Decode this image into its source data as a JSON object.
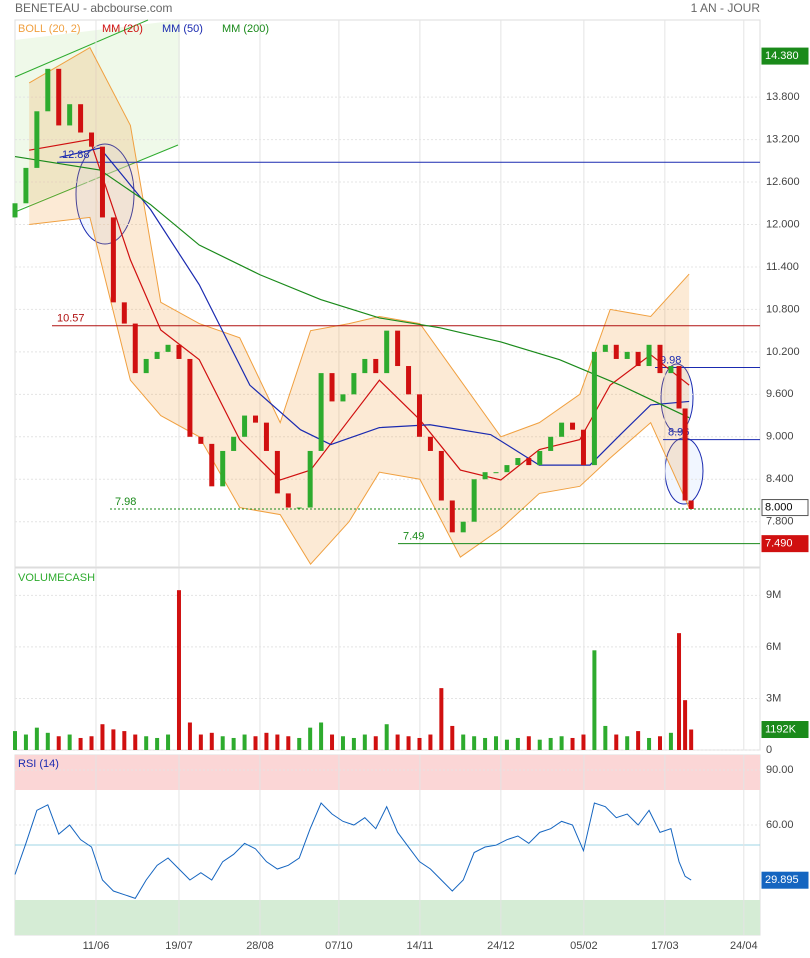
{
  "header": {
    "title": "BENETEAU - abcbourse.com",
    "period": "1 AN - JOUR"
  },
  "chart_data": [
    {
      "type": "candlestick",
      "xlim": [
        0,
        368
      ],
      "xticks": [
        {
          "value": 40,
          "label": "11/06"
        },
        {
          "value": 81,
          "label": "19/07"
        },
        {
          "value": 121,
          "label": "28/08"
        },
        {
          "value": 160,
          "label": "07/10"
        },
        {
          "value": 200,
          "label": "14/11"
        },
        {
          "value": 240,
          "label": "24/12"
        },
        {
          "value": 281,
          "label": "05/02"
        },
        {
          "value": 321,
          "label": "17/03"
        },
        {
          "value": 360,
          "label": "24/04"
        }
      ],
      "ylim": [
        7.16,
        14.89
      ],
      "yticks": [
        {
          "value": 13.8,
          "label": "13.800"
        },
        {
          "value": 13.2,
          "label": "13.200"
        },
        {
          "value": 12.6,
          "label": "12.600"
        },
        {
          "value": 12,
          "label": "12.000"
        },
        {
          "value": 11.4,
          "label": "11.400"
        },
        {
          "value": 10.8,
          "label": "10.800"
        },
        {
          "value": 10.2,
          "label": "10.200"
        },
        {
          "value": 9.6,
          "label": "9.600"
        },
        {
          "value": 9,
          "label": "9.000"
        },
        {
          "value": 8.4,
          "label": "8.400"
        },
        {
          "value": 7.8,
          "label": "7.800"
        }
      ],
      "grid": true,
      "up_color": "#2eab2e",
      "down_color": "#d01010",
      "candles": {
        "x": [
          0,
          5.4,
          10.8,
          16.2,
          21.6,
          27,
          32.4,
          37.8,
          43.2,
          48.6,
          54,
          59.4,
          64.8,
          70.2,
          75.6,
          81,
          86.4,
          91.8,
          97.2,
          102.6,
          108,
          113.4,
          118.8,
          124.2,
          129.6,
          135,
          140.4,
          145.8,
          151.2,
          156.6,
          162,
          167.4,
          172.8,
          178.2,
          183.6,
          189,
          194.4,
          199.8,
          205.2,
          210.6,
          216,
          221.4,
          226.8,
          232.2,
          237.6,
          243,
          248.4,
          253.8,
          259.2,
          264.6,
          270,
          275.4,
          280.8,
          286.2,
          291.6,
          297,
          302.4,
          307.8,
          313.2,
          318.6,
          324,
          328,
          331,
          334
        ],
        "open": [
          12.1,
          12.3,
          12.8,
          13.6,
          14.2,
          13.4,
          13.7,
          13.3,
          13.1,
          12.1,
          10.9,
          10.6,
          9.9,
          10.1,
          10.2,
          10.3,
          10.1,
          9,
          8.9,
          8.3,
          8.8,
          9,
          9.3,
          9.2,
          8.8,
          8.2,
          8,
          8,
          8.8,
          9.9,
          9.5,
          9.6,
          9.9,
          10.1,
          9.9,
          10.5,
          10,
          9.6,
          9,
          8.8,
          8.1,
          7.65,
          7.8,
          8.4,
          8.5,
          8.5,
          8.6,
          8.7,
          8.6,
          8.8,
          9,
          9.2,
          9.1,
          8.6,
          10.2,
          10.3,
          10.1,
          10.2,
          10,
          10.3,
          9.9,
          10,
          9.4,
          8.1
        ],
        "close": [
          12.3,
          12.8,
          13.6,
          14.2,
          13.4,
          13.7,
          13.3,
          13.1,
          12.1,
          10.9,
          10.6,
          9.9,
          10.1,
          10.2,
          10.3,
          10.1,
          9,
          8.9,
          8.3,
          8.8,
          9,
          9.3,
          9.2,
          8.8,
          8.2,
          8,
          8,
          8.8,
          9.9,
          9.5,
          9.6,
          9.9,
          10.1,
          9.9,
          10.5,
          10,
          9.6,
          9,
          8.8,
          8.1,
          7.65,
          7.8,
          8.4,
          8.5,
          8.5,
          8.6,
          8.7,
          8.6,
          8.8,
          9,
          9.2,
          9.1,
          8.6,
          10.2,
          10.3,
          10.1,
          10.2,
          10,
          10.3,
          9.9,
          10,
          9.4,
          8.1,
          7.98
        ]
      },
      "bollinger": {
        "name": "BOLL (20, 2)",
        "color": "#f0a040",
        "x": [
          7,
          37,
          57,
          72,
          91,
          111,
          131,
          146,
          165,
          180,
          200,
          220,
          240,
          259,
          279,
          294,
          314,
          333
        ],
        "upper": [
          14,
          14.5,
          13.4,
          10.9,
          10.6,
          10.4,
          9.2,
          10.5,
          10.6,
          10.7,
          10.6,
          9.8,
          9,
          9.2,
          9.6,
          10.8,
          10.7,
          11.3
        ],
        "lower": [
          12,
          12.1,
          9.8,
          9.3,
          9,
          8,
          7.9,
          7.2,
          7.8,
          8.5,
          8.4,
          7.3,
          7.7,
          8.2,
          8.3,
          8.7,
          9.2,
          8
        ]
      },
      "series": [
        {
          "name": "MM (20)",
          "color": "#d01010",
          "x": [
            7,
            37,
            57,
            72,
            91,
            111,
            131,
            146,
            165,
            180,
            200,
            220,
            240,
            259,
            279,
            294,
            314,
            333
          ],
          "values": [
            13.05,
            13.2,
            11.5,
            10.51,
            10.09,
            8.96,
            8.39,
            8.53,
            9.24,
            9.8,
            9.24,
            8.53,
            8.39,
            8.82,
            8.96,
            9.73,
            10.16,
            9.73
          ]
        },
        {
          "name": "MM (50)",
          "color": "#1a2ab0",
          "x": [
            22,
            42,
            67,
            91,
            116,
            141,
            156,
            180,
            205,
            235,
            259,
            284,
            299,
            314,
            333
          ],
          "values": [
            12.95,
            13.08,
            12.21,
            11.15,
            9.73,
            9.1,
            8.89,
            9.13,
            9.17,
            9.03,
            8.6,
            8.6,
            9.03,
            9.45,
            9.5
          ]
        },
        {
          "name": "MM (200)",
          "color": "#1a8a1a",
          "x": [
            0,
            42,
            67,
            91,
            121,
            151,
            180,
            210,
            240,
            269,
            299,
            333
          ],
          "values": [
            12.96,
            12.77,
            12.28,
            11.71,
            11.29,
            10.94,
            10.68,
            10.54,
            10.34,
            10.09,
            9.73,
            9.27
          ]
        }
      ],
      "levels": [
        {
          "value": 12.88,
          "color": "#1a2ab0"
        },
        {
          "value": 10.57,
          "color": "#b01010"
        },
        {
          "value": 7.98,
          "color": "#1a8a1a",
          "dashed": true
        },
        {
          "value": 7.49,
          "color": "#1a8a1a"
        },
        {
          "value": 9.98,
          "color": "#1a2ab0"
        },
        {
          "value": 8.96,
          "color": "#1a2ab0"
        }
      ],
      "badges": [
        {
          "value": 14.38,
          "label": "14.380",
          "color": "#1a8a1a"
        },
        {
          "value": 8,
          "label": "8.000",
          "color": "#ffffff"
        },
        {
          "value": 7.49,
          "label": "7.490",
          "color": "#d01010"
        }
      ]
    },
    {
      "type": "bar",
      "title": "VOLUMECASH",
      "ylim": [
        0,
        10590000
      ],
      "yticks": [
        {
          "value": 9000000,
          "label": "9M"
        },
        {
          "value": 6000000,
          "label": "6M"
        },
        {
          "value": 3000000,
          "label": "3M"
        },
        0
      ],
      "values": [
        1100000,
        900000,
        1300000,
        1000000,
        800000,
        900000,
        700000,
        800000,
        1500000,
        1200000,
        1100000,
        900000,
        800000,
        700000,
        900000,
        9300000,
        1600000,
        900000,
        1000000,
        800000,
        700000,
        900000,
        800000,
        1000000,
        900000,
        800000,
        700000,
        1300000,
        1600000,
        900000,
        800000,
        700000,
        900000,
        800000,
        1500000,
        900000,
        800000,
        700000,
        900000,
        3600000,
        1400000,
        900000,
        800000,
        700000,
        800000,
        600000,
        700000,
        800000,
        600000,
        700000,
        800000,
        700000,
        900000,
        5800000,
        1400000,
        900000,
        800000,
        1100000,
        700000,
        800000,
        1000000,
        6800000,
        2900000,
        1192000
      ],
      "badges": [
        {
          "value": 1192000,
          "label": "1192K",
          "color": "#1a8a1a"
        }
      ]
    },
    {
      "type": "line",
      "title": "RSI (14)",
      "ylim": [
        0,
        98.2
      ],
      "yticks": [
        {
          "value": 90,
          "label": "90.00"
        },
        {
          "value": 60,
          "label": "60.00"
        }
      ],
      "color": "#1565c0",
      "values": [
        33,
        50,
        68,
        71,
        55,
        60,
        52,
        48,
        30,
        24,
        22,
        20,
        30,
        38,
        42,
        36,
        30,
        34,
        30,
        40,
        44,
        50,
        47,
        40,
        36,
        38,
        42,
        58,
        72,
        66,
        62,
        60,
        64,
        58,
        70,
        56,
        48,
        40,
        36,
        30,
        24,
        30,
        45,
        48,
        49,
        52,
        54,
        50,
        56,
        58,
        62,
        60,
        46,
        72,
        70,
        64,
        66,
        60,
        68,
        56,
        58,
        40,
        32,
        30
      ],
      "badges": [
        {
          "value": 29.895,
          "label": "29.895",
          "color": "#1565c0"
        }
      ]
    }
  ]
}
